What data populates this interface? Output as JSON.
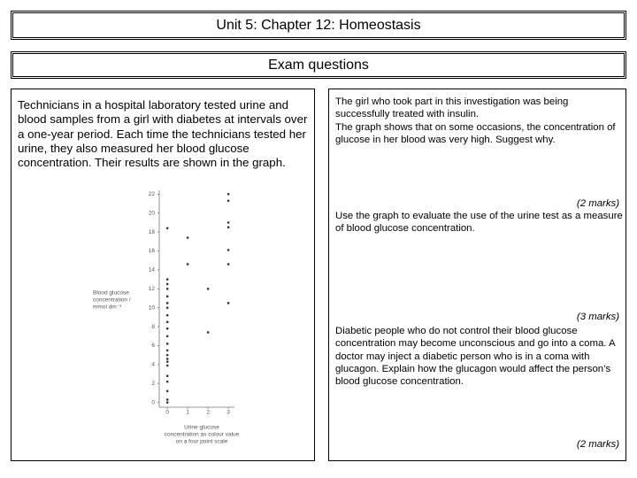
{
  "header": {
    "title": "Unit 5: Chapter 12: Homeostasis"
  },
  "subheader": {
    "title": "Exam questions"
  },
  "left": {
    "paragraph": "Technicians in a hospital laboratory tested urine and blood samples from a girl with diabetes at intervals over a one-year period. Each time the technicians tested her urine, they also measured her blood glucose concentration. Their results are shown in the graph."
  },
  "chart_data": {
    "type": "scatter",
    "ylabel": [
      "Blood glucose",
      "concentration /",
      "mmol dm⁻³"
    ],
    "xlabel": [
      "Urine glucose",
      "concentration as colour value",
      "on a four point scale"
    ],
    "x": [
      0,
      0,
      0,
      0,
      0,
      0,
      0,
      0,
      0,
      0,
      0,
      0,
      0,
      0,
      0,
      0,
      0,
      0,
      0,
      0,
      0,
      0,
      1,
      1,
      2,
      2,
      3,
      3,
      3,
      3,
      3,
      3,
      3
    ],
    "values": [
      0,
      0.3,
      1.2,
      2.2,
      2.8,
      3.9,
      4.3,
      4.6,
      5,
      5.5,
      6.2,
      7,
      7.8,
      8.5,
      9.2,
      10,
      10.5,
      11.2,
      12,
      12.5,
      13,
      18.4,
      17.4,
      14.6,
      12,
      7.4,
      22,
      21.3,
      19,
      18.5,
      16.1,
      14.6,
      10.5
    ],
    "color": "#333333",
    "xlim": [
      -0.4,
      3.3
    ],
    "xticks": [
      0,
      1,
      2,
      3
    ],
    "ylim": [
      -0.5,
      22.4
    ],
    "yticks": [
      0,
      2,
      4,
      6,
      8,
      10,
      12,
      14,
      16,
      18,
      20,
      22
    ]
  },
  "questions": [
    {
      "paragraphs": [
        "The girl who took part in this investigation was being successfully treated with insulin.",
        "The graph shows that on some occasions, the concentration of glucose in her blood was very high. Suggest why."
      ],
      "marks": "(2 marks)"
    },
    {
      "paragraphs": [
        "Use the graph to evaluate the use of the urine test as a measure of blood glucose concentration."
      ],
      "marks": "(3 marks)"
    },
    {
      "paragraphs": [
        "Diabetic people who do not control their blood glucose concentration may become unconscious and go into a coma. A doctor may inject a diabetic person who is in a coma with glucagon. Explain how the glucagon would affect the person’s blood glucose concentration."
      ],
      "marks": "(2 marks)"
    }
  ]
}
